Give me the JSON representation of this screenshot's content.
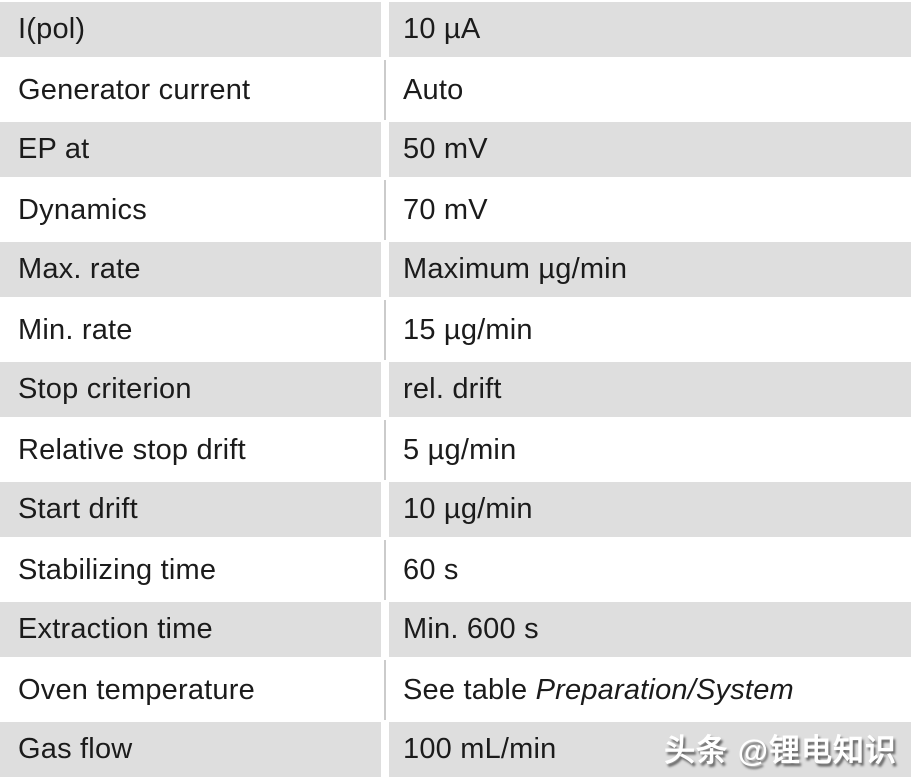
{
  "table": {
    "rows": [
      {
        "label": "I(pol)",
        "value": "10 µA"
      },
      {
        "label": "Generator current",
        "value": "Auto"
      },
      {
        "label": "EP at",
        "value": "50 mV"
      },
      {
        "label": "Dynamics",
        "value": "70 mV"
      },
      {
        "label": "Max. rate",
        "value": "Maximum µg/min"
      },
      {
        "label": "Min. rate",
        "value": "15 µg/min"
      },
      {
        "label": "Stop criterion",
        "value": "rel. drift"
      },
      {
        "label": "Relative stop drift",
        "value": "5 µg/min"
      },
      {
        "label": "Start drift",
        "value": "10 µg/min"
      },
      {
        "label": "Stabilizing time",
        "value": "60 s"
      },
      {
        "label": "Extraction time",
        "value": "Min. 600 s"
      },
      {
        "label": "Oven temperature",
        "value": "See table ",
        "value_italic": "Preparation/System"
      },
      {
        "label": "Gas flow",
        "value": "100 mL/min"
      }
    ]
  },
  "watermark": {
    "text": "头条 @锂电知识"
  },
  "colors": {
    "row_shaded": "#dedede",
    "row_plain": "#ffffff",
    "divider_line": "#cbcbcb",
    "text": "#1b1b1b"
  }
}
